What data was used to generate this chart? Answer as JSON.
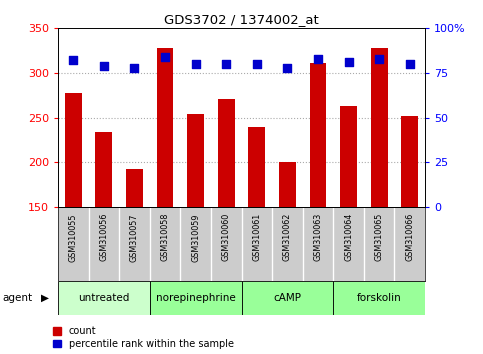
{
  "title": "GDS3702 / 1374002_at",
  "samples": [
    "GSM310055",
    "GSM310056",
    "GSM310057",
    "GSM310058",
    "GSM310059",
    "GSM310060",
    "GSM310061",
    "GSM310062",
    "GSM310063",
    "GSM310064",
    "GSM310065",
    "GSM310066"
  ],
  "count_values": [
    278,
    234,
    193,
    328,
    254,
    271,
    240,
    200,
    311,
    263,
    328,
    252
  ],
  "percentile_values": [
    82,
    79,
    78,
    84,
    80,
    80,
    80,
    78,
    83,
    81,
    83,
    80
  ],
  "bar_color": "#cc0000",
  "dot_color": "#0000cc",
  "ylim_left": [
    150,
    350
  ],
  "ylim_right": [
    0,
    100
  ],
  "yticks_left": [
    150,
    200,
    250,
    300,
    350
  ],
  "yticks_right": [
    0,
    25,
    50,
    75,
    100
  ],
  "yticklabels_right": [
    "0",
    "25",
    "50",
    "75",
    "100%"
  ],
  "group_defs": [
    {
      "label": "untreated",
      "start": 0,
      "end": 3,
      "color": "#ccffcc"
    },
    {
      "label": "norepinephrine",
      "start": 3,
      "end": 6,
      "color": "#99ff99"
    },
    {
      "label": "cAMP",
      "start": 6,
      "end": 9,
      "color": "#99ff99"
    },
    {
      "label": "forskolin",
      "start": 9,
      "end": 12,
      "color": "#99ff99"
    }
  ],
  "agent_label": "agent",
  "legend_count_label": "count",
  "legend_percentile_label": "percentile rank within the sample",
  "grid_color": "#aaaaaa",
  "tick_label_area_color": "#cccccc",
  "background_color": "#ffffff",
  "plot_bg_color": "#ffffff",
  "bar_width": 0.55,
  "dot_size": 28
}
